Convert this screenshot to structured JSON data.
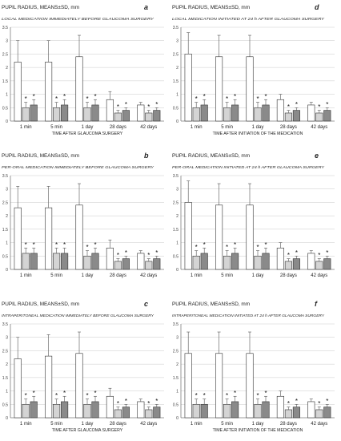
{
  "figure": {
    "ylabel": "PUPIL RADIUS, MEANS±SD, mm",
    "colors": {
      "control": "#ffffff",
      "treated1": "#d4d4d4",
      "treated2": "#8a8a8a",
      "stroke": "#333333",
      "grid": "#bbbbbb",
      "axis": "#555555"
    }
  },
  "chart_data": [
    {
      "type": "bar",
      "panel_letter": "a",
      "subtitle": "LOCAL MEDICATION IMMEDIATELY BEFORE GLAUCOMA SURGERY",
      "xlabel": "TIME AFTER GLAUCOMA SURGERY",
      "ylabel": "PUPIL RADIUS, MEANS±SD, mm",
      "categories": [
        "1 min",
        "5 min",
        "1 day",
        "28 days",
        "42 days"
      ],
      "ylim": [
        0,
        3.5
      ],
      "yticks": [
        "0",
        "0.5",
        "1",
        "1.5",
        "2",
        "2.5",
        "3",
        "3.5"
      ],
      "grid": true,
      "series": [
        {
          "values": [
            2.2,
            2.2,
            2.4,
            0.8,
            0.6
          ],
          "errors": [
            0.8,
            0.8,
            0.8,
            0.3,
            0.1
          ]
        },
        {
          "values": [
            0.5,
            0.5,
            0.5,
            0.3,
            0.3
          ],
          "errors": [
            0.2,
            0.2,
            0.2,
            0.1,
            0.1
          ]
        },
        {
          "values": [
            0.6,
            0.6,
            0.6,
            0.4,
            0.4
          ],
          "errors": [
            0.2,
            0.2,
            0.2,
            0.1,
            0.1
          ]
        }
      ],
      "significance_marks": "*"
    },
    {
      "type": "bar",
      "panel_letter": "d",
      "subtitle": "LOCAL MEDICATION INITIATED AT 24 h AFTER GLAUCOMA SURGERY",
      "xlabel": "TIME AFTER INITIATION OF THE MEDICATION",
      "ylabel": "PUPIL RADIUS, MEANS±SD, mm",
      "categories": [
        "1 min",
        "5 min",
        "1 day",
        "28 days",
        "42 days"
      ],
      "ylim": [
        0,
        3.5
      ],
      "yticks": [
        "0",
        "0.5",
        "1",
        "1.5",
        "2",
        "2.5",
        "3",
        "3.5"
      ],
      "grid": true,
      "series": [
        {
          "values": [
            2.5,
            2.4,
            2.4,
            0.8,
            0.6
          ],
          "errors": [
            0.8,
            0.8,
            0.8,
            0.2,
            0.1
          ]
        },
        {
          "values": [
            0.5,
            0.5,
            0.5,
            0.3,
            0.3
          ],
          "errors": [
            0.2,
            0.2,
            0.2,
            0.1,
            0.1
          ]
        },
        {
          "values": [
            0.6,
            0.6,
            0.6,
            0.4,
            0.4
          ],
          "errors": [
            0.2,
            0.2,
            0.2,
            0.1,
            0.1
          ]
        }
      ],
      "significance_marks": "*"
    },
    {
      "type": "bar",
      "panel_letter": "b",
      "subtitle": "PER-ORAL MEDICATION IMMEDIATELY BEFORE GLAUCOMA SURGERY",
      "xlabel": "",
      "ylabel": "PUPIL RADIUS, MEANS±SD, mm",
      "categories": [
        "1 min",
        "5 min",
        "1 day",
        "28 days",
        "42 days"
      ],
      "ylim": [
        0,
        3.5
      ],
      "yticks": [
        "0",
        "0.5",
        "1",
        "1.5",
        "2",
        "2.5",
        "3",
        "3.5"
      ],
      "grid": true,
      "series": [
        {
          "values": [
            2.3,
            2.3,
            2.4,
            0.8,
            0.6
          ],
          "errors": [
            0.8,
            0.8,
            0.8,
            0.3,
            0.1
          ]
        },
        {
          "values": [
            0.6,
            0.6,
            0.5,
            0.3,
            0.3
          ],
          "errors": [
            0.2,
            0.2,
            0.2,
            0.1,
            0.1
          ]
        },
        {
          "values": [
            0.6,
            0.6,
            0.6,
            0.4,
            0.4
          ],
          "errors": [
            0.2,
            0.2,
            0.2,
            0.1,
            0.1
          ]
        }
      ],
      "significance_marks": "*"
    },
    {
      "type": "bar",
      "panel_letter": "e",
      "subtitle": "PER-ORAL MEDICATION INITIATED AT 24 h AFTER GLAUCOMA SURGERY",
      "xlabel": "",
      "ylabel": "PUPIL RADIUS, MEANS±SD, mm",
      "categories": [
        "1 min",
        "5 min",
        "1 day",
        "28 days",
        "42 days"
      ],
      "ylim": [
        0,
        3.5
      ],
      "yticks": [
        "0",
        "0.5",
        "1",
        "1.5",
        "2",
        "2.5",
        "3",
        "3.5"
      ],
      "grid": true,
      "series": [
        {
          "values": [
            2.5,
            2.4,
            2.4,
            0.8,
            0.6
          ],
          "errors": [
            0.8,
            0.8,
            0.8,
            0.2,
            0.1
          ]
        },
        {
          "values": [
            0.5,
            0.5,
            0.5,
            0.3,
            0.3
          ],
          "errors": [
            0.2,
            0.2,
            0.2,
            0.1,
            0.1
          ]
        },
        {
          "values": [
            0.6,
            0.6,
            0.6,
            0.4,
            0.4
          ],
          "errors": [
            0.2,
            0.2,
            0.2,
            0.1,
            0.1
          ]
        }
      ],
      "significance_marks": "*"
    },
    {
      "type": "bar",
      "panel_letter": "c",
      "subtitle": "INTRAPERITONEAL MEDICATION IMMEDIATELY BEFORE GLAUCOMA SURGERY",
      "xlabel": "TIME AFTER GLAUCOMA SURGERY",
      "ylabel": "PUPIL RADIUS, MEANS±SD, mm",
      "categories": [
        "1 min",
        "5 min",
        "1 day",
        "28 days",
        "42 days"
      ],
      "ylim": [
        0,
        3.5
      ],
      "yticks": [
        "0",
        "0.5",
        "1",
        "1.5",
        "2",
        "2.5",
        "3",
        "3.5"
      ],
      "grid": true,
      "series": [
        {
          "values": [
            2.2,
            2.3,
            2.4,
            0.8,
            0.6
          ],
          "errors": [
            0.8,
            0.8,
            0.8,
            0.3,
            0.1
          ]
        },
        {
          "values": [
            0.5,
            0.5,
            0.5,
            0.3,
            0.3
          ],
          "errors": [
            0.2,
            0.2,
            0.2,
            0.1,
            0.1
          ]
        },
        {
          "values": [
            0.6,
            0.6,
            0.6,
            0.4,
            0.4
          ],
          "errors": [
            0.2,
            0.2,
            0.2,
            0.1,
            0.1
          ]
        }
      ],
      "significance_marks": "*"
    },
    {
      "type": "bar",
      "panel_letter": "f",
      "subtitle": "INTRAPERITONEAL MEDICATION INITIATED AT 24 h AFTER GLAUCOMA SURGERY",
      "xlabel": "TIME AFTER INITIATION OF THE MEDICATION",
      "ylabel": "PUPIL RADIUS, MEANS±SD, mm",
      "categories": [
        "1 min",
        "5 min",
        "1 day",
        "28 days",
        "42 days"
      ],
      "ylim": [
        0,
        3.5
      ],
      "yticks": [
        "0",
        "0.5",
        "1",
        "1.5",
        "2",
        "2.5",
        "3",
        "3.5"
      ],
      "grid": true,
      "series": [
        {
          "values": [
            2.4,
            2.4,
            2.4,
            0.8,
            0.6
          ],
          "errors": [
            0.8,
            0.8,
            0.8,
            0.2,
            0.1
          ]
        },
        {
          "values": [
            0.5,
            0.5,
            0.5,
            0.3,
            0.3
          ],
          "errors": [
            0.2,
            0.2,
            0.2,
            0.1,
            0.1
          ]
        },
        {
          "values": [
            0.5,
            0.6,
            0.6,
            0.4,
            0.4
          ],
          "errors": [
            0.2,
            0.2,
            0.2,
            0.1,
            0.1
          ]
        }
      ],
      "significance_marks": "*"
    }
  ]
}
